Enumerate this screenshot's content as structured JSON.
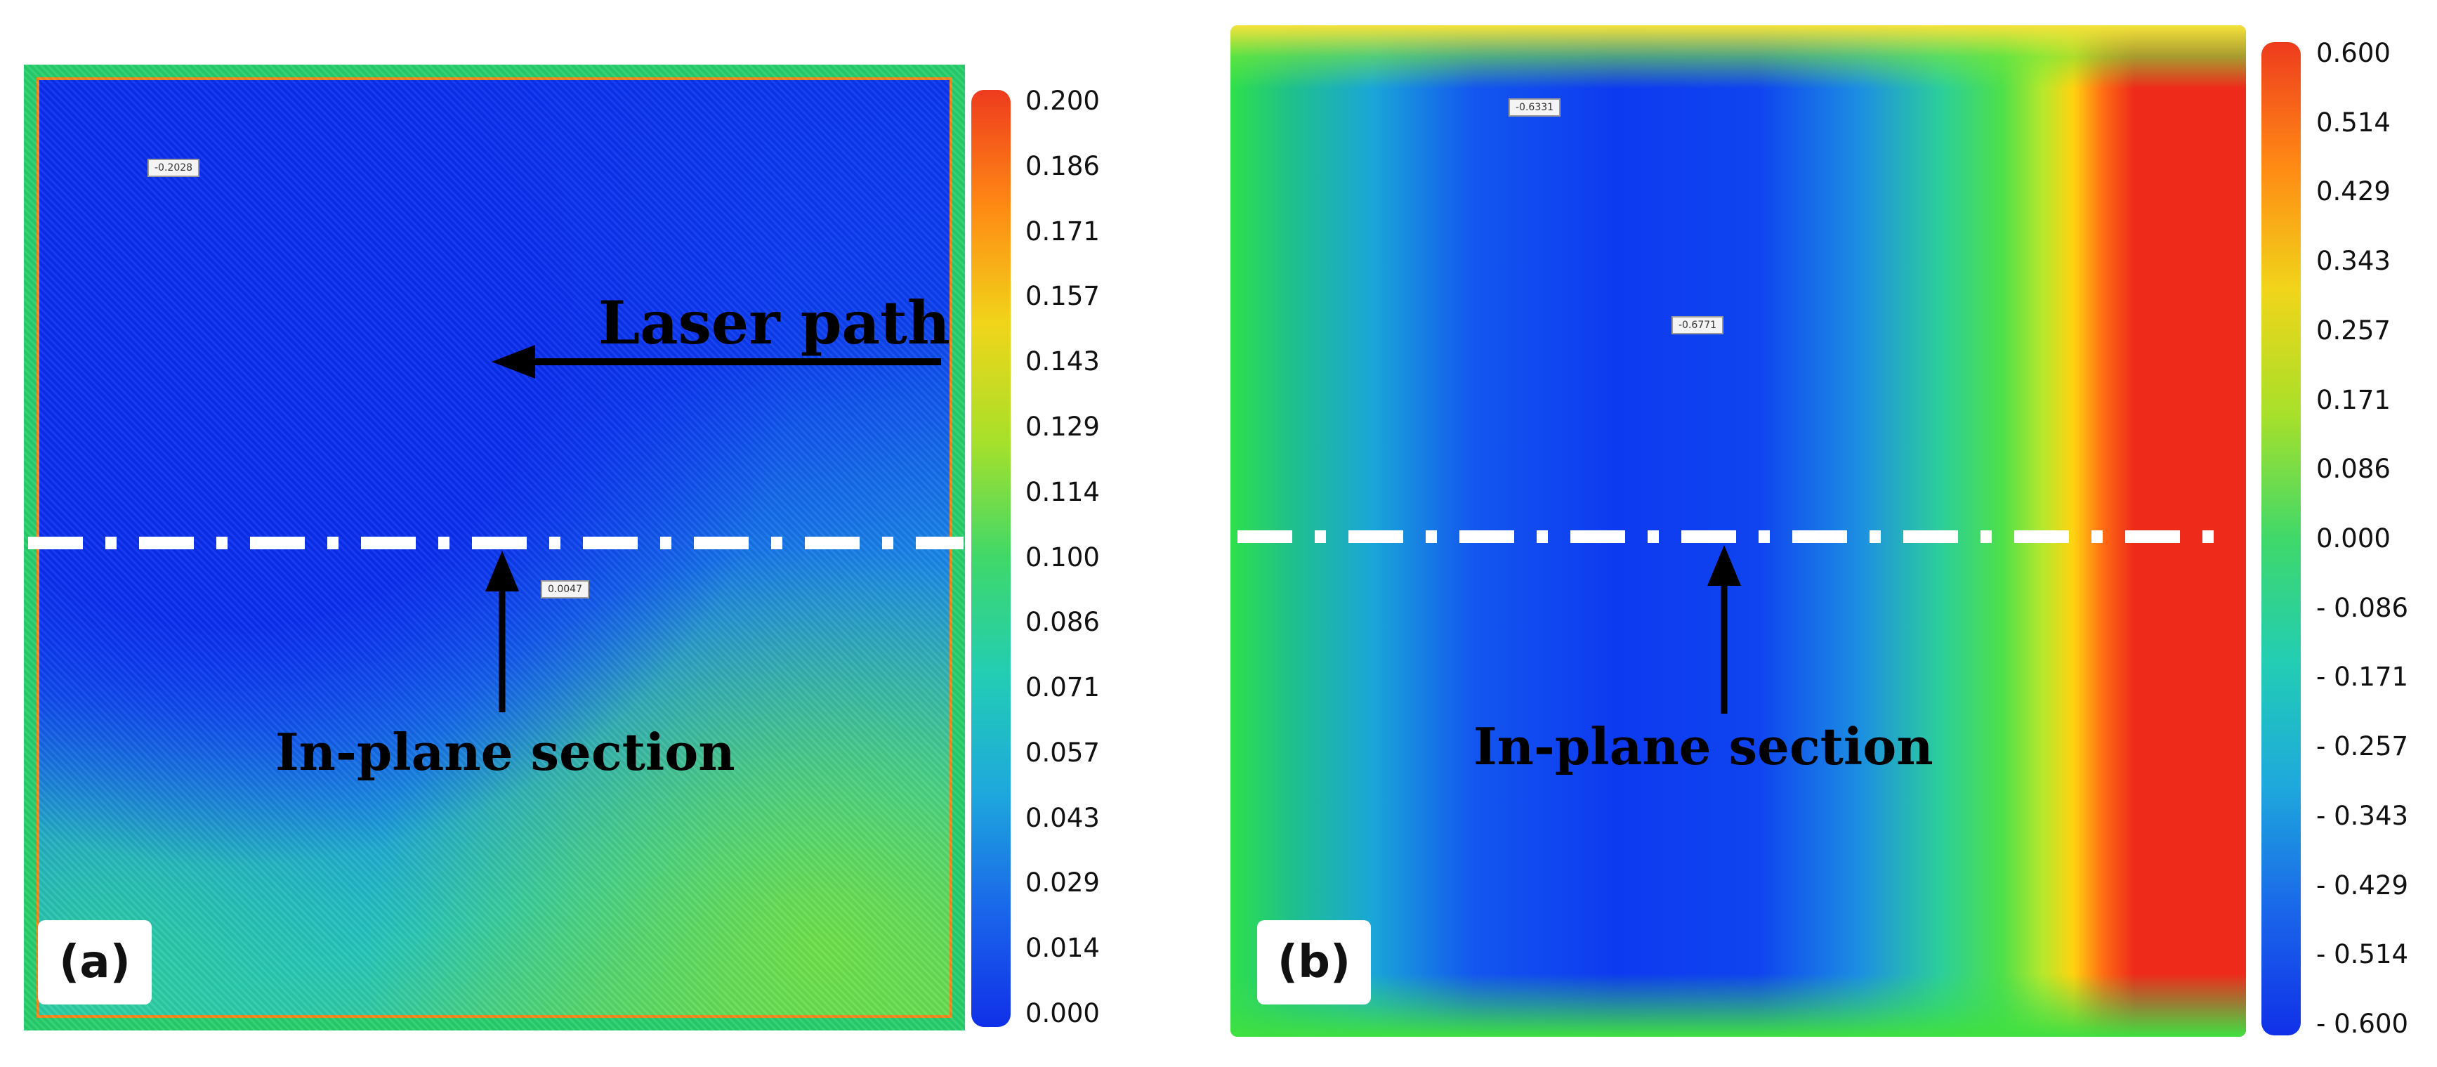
{
  "chart_data": [
    {
      "type": "heatmap",
      "panel_label": "(a)",
      "colorbar": {
        "ticks": [
          "0.200",
          "0.186",
          "0.171",
          "0.157",
          "0.143",
          "0.129",
          "0.114",
          "0.100",
          "0.086",
          "0.071",
          "0.057",
          "0.043",
          "0.029",
          "0.014",
          "0.000"
        ],
        "range": [
          0.0,
          0.2
        ],
        "colors": [
          "#1030e8",
          "#1a66ea",
          "#1ea8dc",
          "#22cdb4",
          "#3fd86a",
          "#a7e02a",
          "#f0d51a",
          "#ff8a14",
          "#ee3b1e"
        ]
      },
      "annotations": {
        "laser_path": "Laser path",
        "section": "In-plane section"
      },
      "probes": [
        "-0.2028",
        "0.0047"
      ]
    },
    {
      "type": "heatmap",
      "panel_label": "(b)",
      "colorbar": {
        "ticks": [
          "0.600",
          "0.514",
          "0.429",
          "0.343",
          "0.257",
          "0.171",
          "0.086",
          "0.000",
          "- 0.086",
          "- 0.171",
          "- 0.257",
          "- 0.343",
          "- 0.429",
          "- 0.514",
          "- 0.600"
        ],
        "range": [
          -0.6,
          0.6
        ],
        "colors": [
          "#1030e8",
          "#1a66ea",
          "#1ea8dc",
          "#22cdb4",
          "#3fd86a",
          "#a7e02a",
          "#f0d51a",
          "#ff8a14",
          "#ee3b1e"
        ]
      },
      "annotations": {
        "section": "In-plane section"
      },
      "probes": [
        "-0.6331",
        "-0.6771"
      ]
    }
  ]
}
